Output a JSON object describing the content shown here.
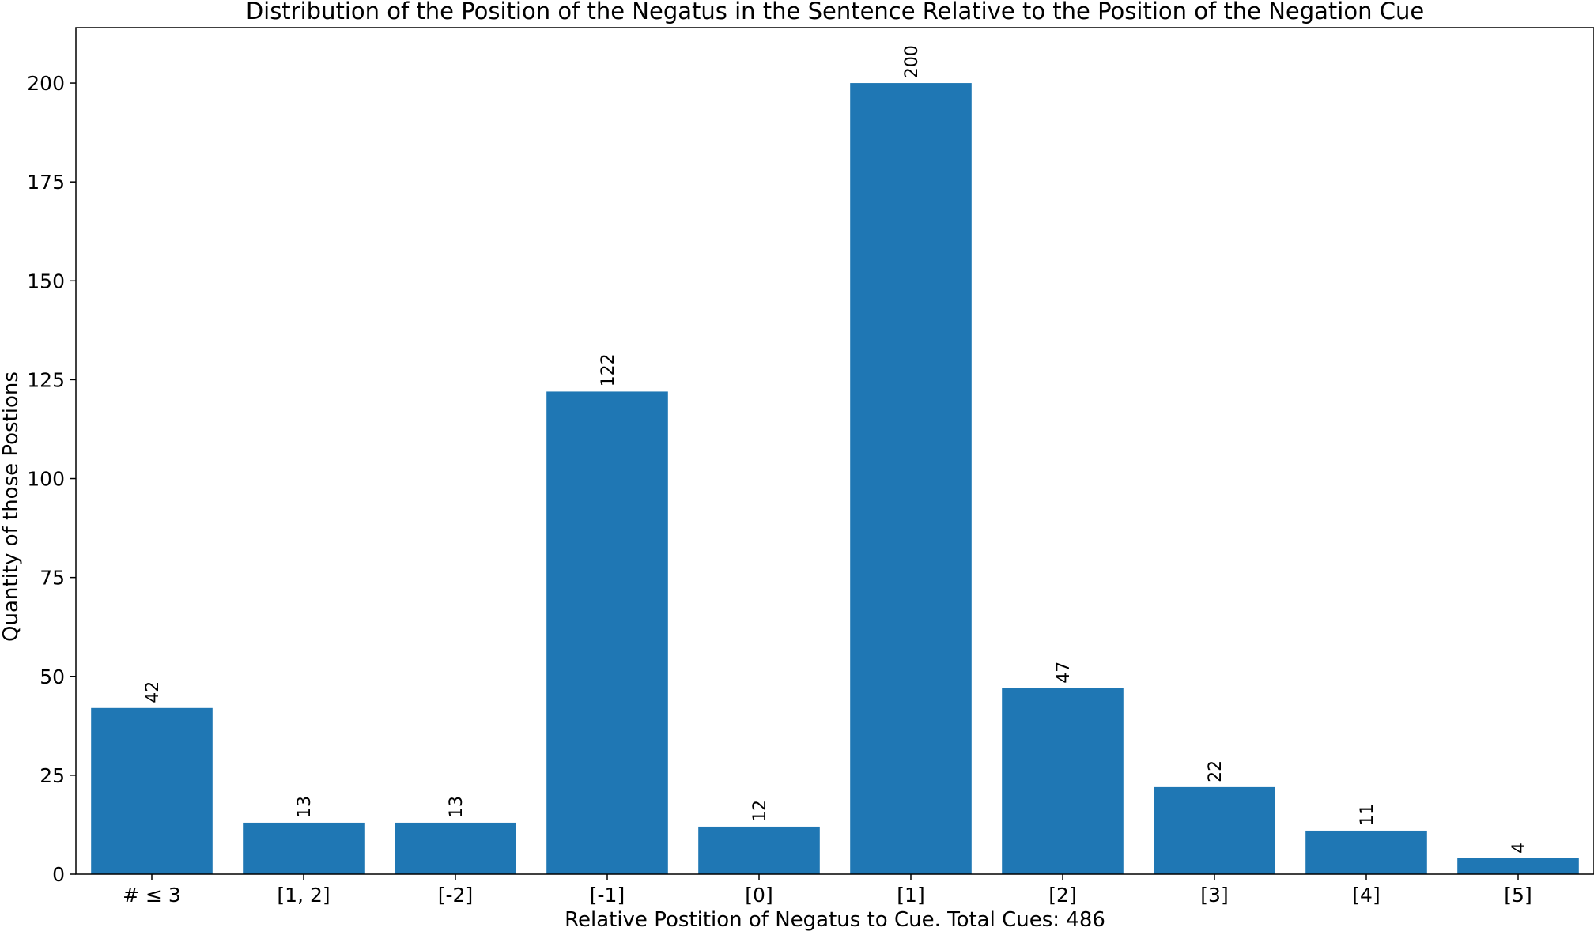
{
  "chart_data": {
    "type": "bar",
    "title": "Distribution of the Position of the Negatus in the Sentence Relative to the Position of the Negation Cue",
    "xlabel": "Relative Postition of Negatus to Cue. Total Cues: 486",
    "ylabel": "Quantity of those Postions",
    "categories": [
      "# ≤ 3",
      "[1, 2]",
      "[-2]",
      "[-1]",
      "[0]",
      "[1]",
      "[2]",
      "[3]",
      "[4]",
      "[5]"
    ],
    "values": [
      42,
      13,
      13,
      122,
      12,
      200,
      47,
      22,
      11,
      4
    ],
    "data_labels": [
      "42",
      "13",
      "13",
      "122",
      "12",
      "200",
      "47",
      "22",
      "11",
      "4"
    ],
    "y_ticks": [
      0,
      25,
      50,
      75,
      100,
      125,
      150,
      175,
      200
    ],
    "ylim": [
      0,
      214
    ],
    "bar_color": "#1f77b4",
    "grid": false,
    "legend": "none",
    "data_label_rotation": "vertical"
  }
}
